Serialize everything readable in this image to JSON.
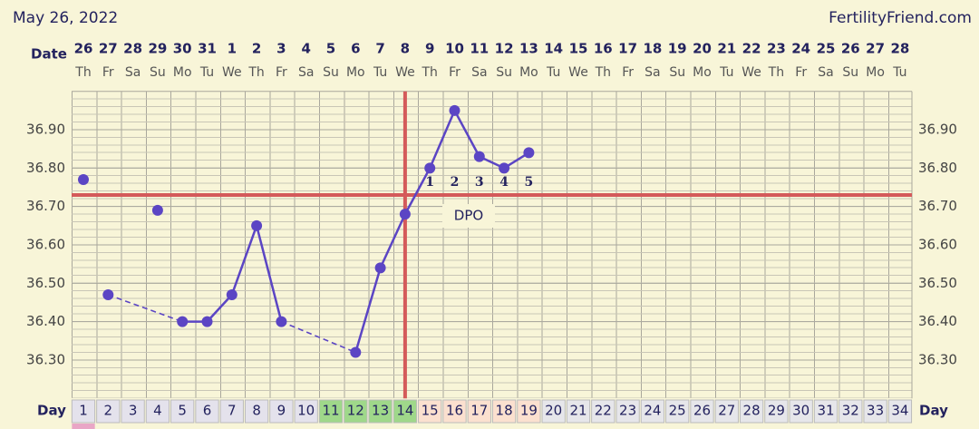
{
  "chart_data": {
    "type": "line",
    "title": "May 26, 2022",
    "source": "FertilityFriend.com",
    "date_label": "Date",
    "day_label": "Day",
    "dates": [
      "26",
      "27",
      "28",
      "29",
      "30",
      "31",
      "1",
      "2",
      "3",
      "4",
      "5",
      "6",
      "7",
      "8",
      "9",
      "10",
      "11",
      "12",
      "13",
      "14",
      "15",
      "16",
      "17",
      "18",
      "19",
      "20",
      "21",
      "22",
      "23",
      "24",
      "25",
      "26",
      "27",
      "28"
    ],
    "weekdays": [
      "Th",
      "Fr",
      "Sa",
      "Su",
      "Mo",
      "Tu",
      "We",
      "Th",
      "Fr",
      "Sa",
      "Su",
      "Mo",
      "Tu",
      "We",
      "Th",
      "Fr",
      "Sa",
      "Su",
      "Mo",
      "Tu",
      "We",
      "Th",
      "Fr",
      "Sa",
      "Su",
      "Mo",
      "Tu",
      "We",
      "Th",
      "Fr",
      "Sa",
      "Su",
      "Mo",
      "Tu"
    ],
    "days": [
      1,
      2,
      3,
      4,
      5,
      6,
      7,
      8,
      9,
      10,
      11,
      12,
      13,
      14,
      15,
      16,
      17,
      18,
      19,
      20,
      21,
      22,
      23,
      24,
      25,
      26,
      27,
      28,
      29,
      30,
      31,
      32,
      33,
      34
    ],
    "day_colors": [
      "#e4e2ec",
      "#e4e2ec",
      "#e4e2ec",
      "#e4e2ec",
      "#e4e2ec",
      "#e4e2ec",
      "#e4e2ec",
      "#e4e2ec",
      "#e4e2ec",
      "#e4e2ec",
      "#9fd88a",
      "#9fd88a",
      "#9fd88a",
      "#9fd88a",
      "#fbe0cf",
      "#fbe0cf",
      "#fbe0cf",
      "#fbe0cf",
      "#fbe0cf",
      "#e6e6ea",
      "#e6e6ea",
      "#e6e6ea",
      "#e6e6ea",
      "#e6e6ea",
      "#e6e6ea",
      "#e6e6ea",
      "#e6e6ea",
      "#e6e6ea",
      "#e6e6ea",
      "#e6e6ea",
      "#e6e6ea",
      "#e6e6ea",
      "#e6e6ea",
      "#e6e6ea"
    ],
    "values": [
      null,
      36.47,
      null,
      null,
      36.4,
      36.4,
      36.47,
      36.65,
      36.4,
      null,
      null,
      36.32,
      36.54,
      36.68,
      36.8,
      36.95,
      36.83,
      36.8,
      36.84,
      null,
      null,
      null,
      null,
      null,
      null,
      null,
      null,
      null,
      null,
      null,
      null,
      null,
      null,
      null
    ],
    "excluded_values": [
      36.77,
      null,
      null,
      36.69,
      null,
      null,
      null,
      null,
      null,
      null,
      null,
      null,
      null,
      null,
      null,
      null,
      null,
      null,
      null,
      null,
      null,
      null,
      null,
      null,
      null,
      null,
      null,
      null,
      null,
      null,
      null,
      null,
      null,
      null
    ],
    "color": "#5b45c4",
    "coverline": 36.73,
    "ovulation_day": 14,
    "marker_color": "#d45a5a",
    "dpo_label": "DPO",
    "dpo": [
      null,
      null,
      null,
      null,
      null,
      null,
      null,
      null,
      null,
      null,
      null,
      null,
      null,
      null,
      1,
      2,
      3,
      4,
      5,
      null,
      null,
      null,
      null,
      null,
      null,
      null,
      null,
      null,
      null,
      null,
      null,
      null,
      null,
      null
    ],
    "ylim": [
      36.2,
      37.0
    ],
    "yticks": [
      {
        "value": 36.3,
        "label": "36.30"
      },
      {
        "value": 36.4,
        "label": "36.40"
      },
      {
        "value": 36.5,
        "label": "36.50"
      },
      {
        "value": 36.6,
        "label": "36.60"
      },
      {
        "value": 36.7,
        "label": "36.70"
      },
      {
        "value": 36.8,
        "label": "36.80"
      },
      {
        "value": 36.9,
        "label": "36.90"
      }
    ]
  }
}
